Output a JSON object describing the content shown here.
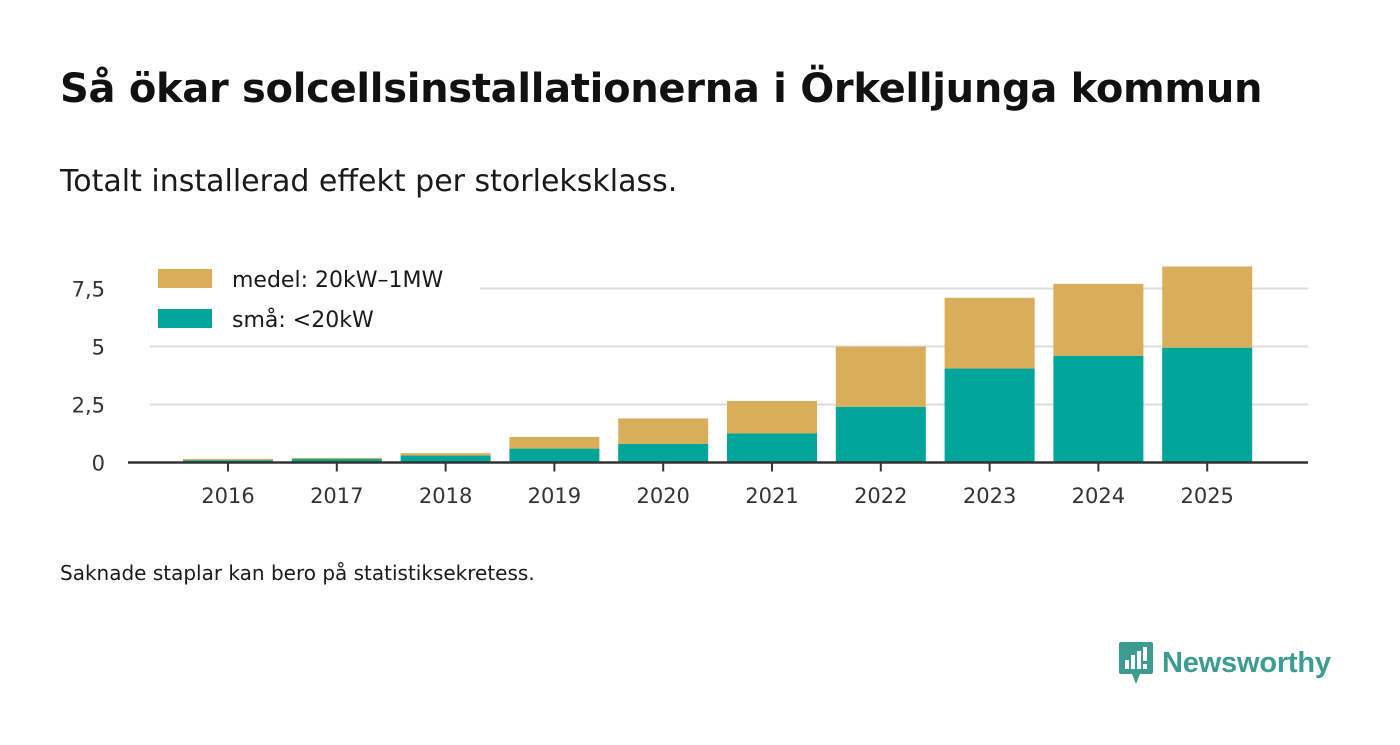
{
  "colors": {
    "medel": "#d9ae5b",
    "sma": "#00a59a",
    "grid": "#dddddd",
    "axis": "#333333",
    "brand": "#3c9c92"
  },
  "chart_data": {
    "type": "bar",
    "stacked": true,
    "title": "Så ökar solcellsinstallationerna i Örkelljunga kommun",
    "subtitle": "Totalt installerad effekt per storleksklass.",
    "xlabel": "",
    "ylabel": "",
    "categories": [
      "2016",
      "2017",
      "2018",
      "2019",
      "2020",
      "2021",
      "2022",
      "2023",
      "2024",
      "2025"
    ],
    "series": [
      {
        "key": "sma",
        "name": "små: <20kW",
        "values": [
          0.1,
          0.15,
          0.3,
          0.6,
          0.8,
          1.25,
          2.4,
          4.05,
          4.6,
          4.95
        ]
      },
      {
        "key": "medel",
        "name": "medel: 20kW–1MW",
        "values": [
          0.05,
          0.05,
          0.1,
          0.5,
          1.1,
          1.4,
          2.6,
          3.05,
          3.1,
          3.5
        ]
      }
    ],
    "ylim": [
      0,
      8.45
    ],
    "yticks": [
      {
        "value": 0,
        "label": "0"
      },
      {
        "value": 2.5,
        "label": "2,5"
      },
      {
        "value": 5,
        "label": "5"
      },
      {
        "value": 7.5,
        "label": "7,5"
      }
    ],
    "grid": true,
    "legend_position": "top-left",
    "legend_order": [
      "medel",
      "sma"
    ]
  },
  "footnote": "Saknade staplar kan bero på statistiksekretess.",
  "brand": {
    "name": "Newsworthy",
    "icon": "newsworthy-logo-icon"
  }
}
